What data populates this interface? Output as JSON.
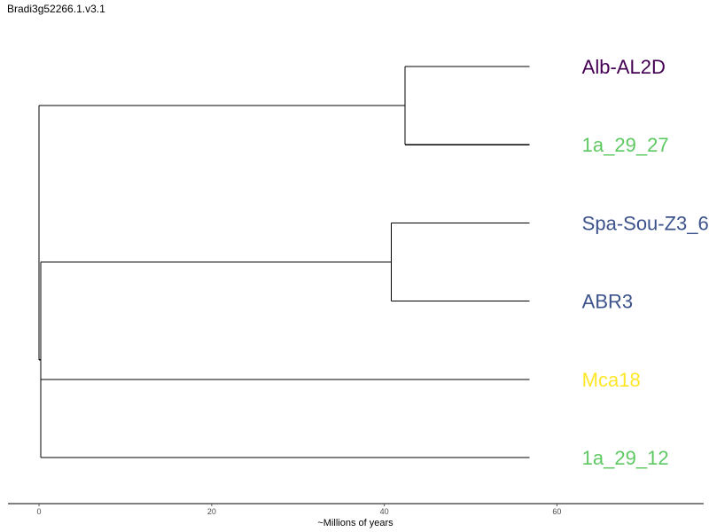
{
  "title": "Bradi3g52266.1.v3.1",
  "chart_data": {
    "type": "dendrogram",
    "xlabel": "~Millions of years",
    "xlim": [
      -3.6,
      77
    ],
    "x_ticks": [
      0,
      20,
      40,
      60
    ],
    "leaf_offset_x": 62.9,
    "leaves": [
      {
        "name": "Alb-AL2D",
        "color": "#440154"
      },
      {
        "name": "1a_29_27",
        "color": "#5ec962"
      },
      {
        "name": "Spa-Sou-Z3_6",
        "color": "#3b528b"
      },
      {
        "name": "ABR3",
        "color": "#3b528b"
      },
      {
        "name": "Mca18",
        "color": "#fde725"
      },
      {
        "name": "1a_29_12",
        "color": "#5ec962"
      }
    ],
    "nodes": [
      {
        "id": "n1",
        "x": 42.4,
        "children": [
          "Alb-AL2D",
          "1a_29_27"
        ]
      },
      {
        "id": "n2",
        "x": 40.8,
        "children": [
          "Spa-Sou-Z3_6",
          "ABR3"
        ]
      },
      {
        "id": "n3",
        "x": 0.2,
        "children": [
          "n2",
          "Mca18",
          "1a_29_12"
        ]
      },
      {
        "id": "root",
        "x": 0.0,
        "children": [
          "n1",
          "n3"
        ]
      }
    ],
    "leaf_end_x": 56.8,
    "grid": false,
    "legend": "none"
  }
}
